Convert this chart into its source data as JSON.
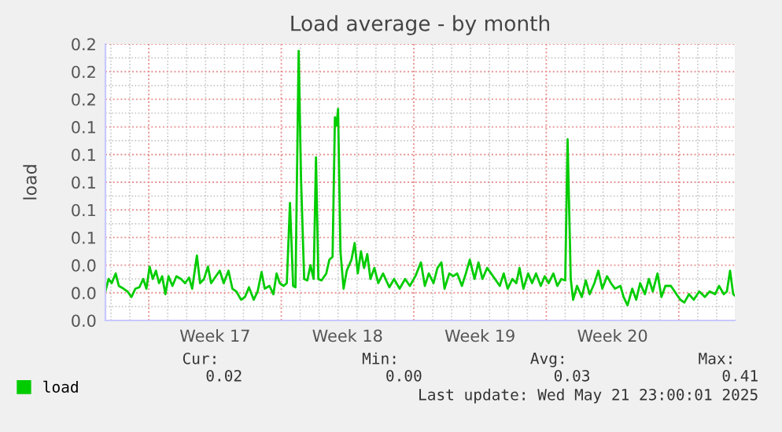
{
  "chart_data": {
    "type": "line",
    "title": "Load average - by month",
    "ylabel": "load",
    "x": [
      "2025-04-18T17:00",
      "2025-04-18T21:00",
      "2025-04-19T01:00",
      "2025-04-19T06:00",
      "2025-04-19T10:00",
      "2025-04-19T16:00",
      "2025-04-19T21:00",
      "2025-04-20T02:00",
      "2025-04-20T07:00",
      "2025-04-20T12:00",
      "2025-04-20T17:00",
      "2025-04-20T21:00",
      "2025-04-21T01:00",
      "2025-04-21T05:00",
      "2025-04-21T09:00",
      "2025-04-21T13:00",
      "2025-04-21T17:00",
      "2025-04-21T21:00",
      "2025-04-22T01:00",
      "2025-04-22T06:00",
      "2025-04-22T11:00",
      "2025-04-22T17:00",
      "2025-04-22T22:00",
      "2025-04-23T03:00",
      "2025-04-23T07:00",
      "2025-04-23T13:00",
      "2025-04-23T17:00",
      "2025-04-23T22:00",
      "2025-04-24T03:00",
      "2025-04-24T07:00",
      "2025-04-24T13:00",
      "2025-04-24T18:00",
      "2025-04-24T23:00",
      "2025-04-25T05:00",
      "2025-04-25T10:00",
      "2025-04-25T15:00",
      "2025-04-25T21:00",
      "2025-04-26T02:00",
      "2025-04-26T07:00",
      "2025-04-26T13:00",
      "2025-04-26T18:00",
      "2025-04-26T23:00",
      "2025-04-27T03:00",
      "2025-04-27T09:00",
      "2025-04-27T14:00",
      "2025-04-27T18:00",
      "2025-04-27T22:00",
      "2025-04-28T03:00",
      "2025-04-28T07:00",
      "2025-04-28T11:00",
      "2025-04-28T15:00",
      "2025-04-28T18:00",
      "2025-04-28T22:00",
      "2025-04-29T01:00",
      "2025-04-29T05:00",
      "2025-04-29T09:00",
      "2025-04-29T13:00",
      "2025-04-29T17:00",
      "2025-04-29T20:00",
      "2025-04-29T23:00",
      "2025-04-30T03:00",
      "2025-04-30T09:00",
      "2025-04-30T13:00",
      "2025-04-30T17:00",
      "2025-04-30T20:00",
      "2025-04-30T22:00",
      "2025-05-01T00:00",
      "2025-05-01T03:00",
      "2025-05-01T07:00",
      "2025-05-01T11:00",
      "2025-05-01T17:00",
      "2025-05-01T21:00",
      "2025-05-02T01:00",
      "2025-05-02T05:00",
      "2025-05-02T09:00",
      "2025-05-02T13:00",
      "2025-05-02T17:00",
      "2025-05-02T22:00",
      "2025-05-03T03:00",
      "2025-05-03T09:00",
      "2025-05-03T17:00",
      "2025-05-03T23:00",
      "2025-05-04T06:00",
      "2025-05-04T13:00",
      "2025-05-04T19:00",
      "2025-05-05T02:00",
      "2025-05-05T09:00",
      "2025-05-05T14:00",
      "2025-05-05T19:00",
      "2025-05-06T01:00",
      "2025-05-06T06:00",
      "2025-05-06T11:00",
      "2025-05-06T15:00",
      "2025-05-06T21:00",
      "2025-05-07T02:00",
      "2025-05-07T07:00",
      "2025-05-07T13:00",
      "2025-05-07T18:00",
      "2025-05-07T23:00",
      "2025-05-08T05:00",
      "2025-05-08T10:00",
      "2025-05-08T15:00",
      "2025-05-08T21:00",
      "2025-05-09T02:00",
      "2025-05-09T07:00",
      "2025-05-09T13:00",
      "2025-05-09T18:00",
      "2025-05-09T23:00",
      "2025-05-10T05:00",
      "2025-05-10T10:00",
      "2025-05-10T14:00",
      "2025-05-10T19:00",
      "2025-05-11T01:00",
      "2025-05-11T06:00",
      "2025-05-11T11:00",
      "2025-05-11T17:00",
      "2025-05-11T22:00",
      "2025-05-12T03:00",
      "2025-05-12T09:00",
      "2025-05-12T14:00",
      "2025-05-12T19:00",
      "2025-05-13T00:00",
      "2025-05-13T03:00",
      "2025-05-13T07:00",
      "2025-05-13T10:00",
      "2025-05-13T15:00",
      "2025-05-13T21:00",
      "2025-05-14T02:00",
      "2025-05-14T07:00",
      "2025-05-14T13:00",
      "2025-05-14T18:00",
      "2025-05-14T23:00",
      "2025-05-15T05:00",
      "2025-05-15T10:00",
      "2025-05-15T15:00",
      "2025-05-15T22:00",
      "2025-05-16T02:00",
      "2025-05-16T07:00",
      "2025-05-16T13:00",
      "2025-05-16T18:00",
      "2025-05-16T23:00",
      "2025-05-17T05:00",
      "2025-05-17T10:00",
      "2025-05-17T15:00",
      "2025-05-17T21:00",
      "2025-05-18T02:00",
      "2025-05-18T07:00",
      "2025-05-18T14:00",
      "2025-05-18T21:00",
      "2025-05-19T02:00",
      "2025-05-19T07:00",
      "2025-05-19T13:00",
      "2025-05-19T19:00",
      "2025-05-20T02:00",
      "2025-05-20T09:00",
      "2025-05-20T15:00",
      "2025-05-20T22:00",
      "2025-05-21T03:00",
      "2025-05-21T09:00",
      "2025-05-21T13:00",
      "2025-05-21T17:00",
      "2025-05-21T21:00",
      "2025-05-21T23:00"
    ],
    "series": [
      {
        "name": "load",
        "color": "#00cc00",
        "values": [
          0.021,
          0.03,
          0.027,
          0.034,
          0.025,
          0.023,
          0.021,
          0.017,
          0.023,
          0.024,
          0.03,
          0.023,
          0.039,
          0.03,
          0.036,
          0.027,
          0.032,
          0.019,
          0.032,
          0.025,
          0.032,
          0.03,
          0.027,
          0.031,
          0.023,
          0.047,
          0.027,
          0.03,
          0.039,
          0.027,
          0.032,
          0.036,
          0.027,
          0.036,
          0.023,
          0.021,
          0.015,
          0.017,
          0.024,
          0.015,
          0.021,
          0.035,
          0.023,
          0.025,
          0.019,
          0.034,
          0.027,
          0.025,
          0.027,
          0.085,
          0.025,
          0.024,
          0.195,
          0.103,
          0.03,
          0.029,
          0.04,
          0.03,
          0.118,
          0.03,
          0.029,
          0.034,
          0.044,
          0.046,
          0.147,
          0.141,
          0.153,
          0.05,
          0.023,
          0.036,
          0.044,
          0.056,
          0.034,
          0.05,
          0.038,
          0.048,
          0.03,
          0.038,
          0.027,
          0.034,
          0.024,
          0.03,
          0.023,
          0.03,
          0.025,
          0.032,
          0.042,
          0.025,
          0.034,
          0.027,
          0.038,
          0.042,
          0.023,
          0.034,
          0.032,
          0.034,
          0.025,
          0.034,
          0.044,
          0.03,
          0.042,
          0.03,
          0.038,
          0.034,
          0.03,
          0.025,
          0.034,
          0.023,
          0.03,
          0.027,
          0.038,
          0.023,
          0.034,
          0.027,
          0.034,
          0.025,
          0.032,
          0.027,
          0.034,
          0.025,
          0.03,
          0.029,
          0.131,
          0.03,
          0.015,
          0.025,
          0.017,
          0.029,
          0.019,
          0.027,
          0.036,
          0.023,
          0.032,
          0.027,
          0.023,
          0.025,
          0.017,
          0.011,
          0.023,
          0.015,
          0.027,
          0.019,
          0.03,
          0.021,
          0.034,
          0.017,
          0.025,
          0.025,
          0.019,
          0.015,
          0.013,
          0.019,
          0.015,
          0.021,
          0.017,
          0.021,
          0.019,
          0.025,
          0.019,
          0.021,
          0.036,
          0.019,
          0.018
        ]
      }
    ],
    "xlim": [
      "2025-04-18T17:00",
      "2025-05-21T23:00"
    ],
    "xticks": [
      {
        "value": "2025-04-21",
        "label": null
      },
      {
        "value": "2025-04-24T12:00",
        "label": "Week 17"
      },
      {
        "value": "2025-04-28",
        "label": null
      },
      {
        "value": "2025-05-01T12:00",
        "label": "Week 18"
      },
      {
        "value": "2025-05-05",
        "label": null
      },
      {
        "value": "2025-05-08T12:00",
        "label": "Week 19"
      },
      {
        "value": "2025-05-12",
        "label": null
      },
      {
        "value": "2025-05-15T12:00",
        "label": "Week 20"
      },
      {
        "value": "2025-05-19",
        "label": null
      }
    ],
    "ylim": [
      0,
      0.2
    ],
    "yticks": [
      {
        "value": 0,
        "label": "0.0"
      },
      {
        "value": 0.02,
        "label": "0.0"
      },
      {
        "value": 0.04,
        "label": "0.0"
      },
      {
        "value": 0.06,
        "label": "0.1"
      },
      {
        "value": 0.08,
        "label": "0.1"
      },
      {
        "value": 0.1,
        "label": "0.1"
      },
      {
        "value": 0.12,
        "label": "0.1"
      },
      {
        "value": 0.14,
        "label": "0.1"
      },
      {
        "value": 0.16,
        "label": "0.2"
      },
      {
        "value": 0.18,
        "label": "0.2"
      },
      {
        "value": 0.2,
        "label": "0.2"
      }
    ],
    "grid": true,
    "legend": "bottom left",
    "line_style": "solid",
    "marker": "none",
    "annotations": [
      "Cur:",
      "0.02",
      "Min:",
      "0.00",
      "Avg:",
      "0.03",
      "Max:",
      "0.41",
      "Last update: Wed May 21 23:00:01 2025"
    ]
  }
}
